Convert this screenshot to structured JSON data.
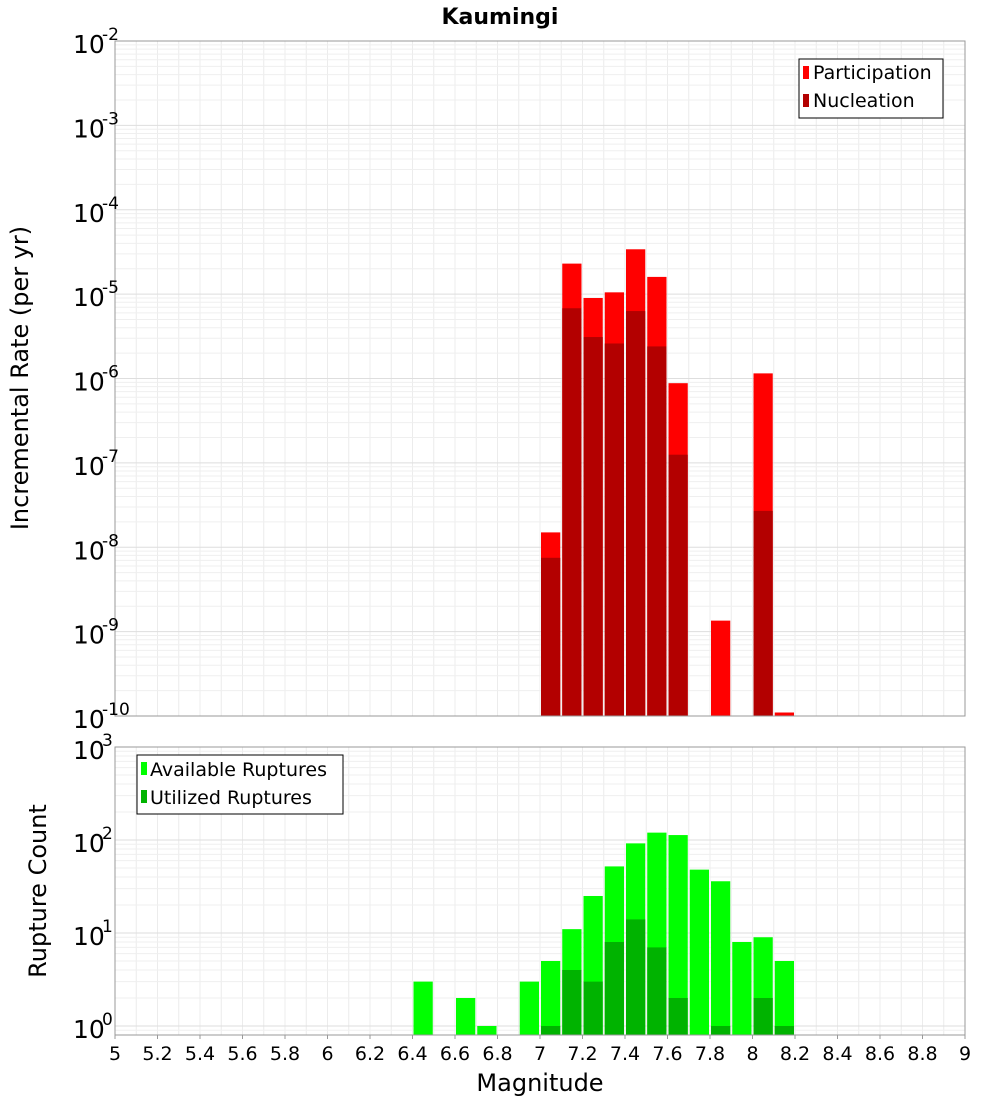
{
  "title": "Kaumingi",
  "chart_data": [
    {
      "type": "bar",
      "name": "rates",
      "ylabel": "Incremental Rate (per yr)",
      "yscale": "log",
      "ylim": [
        1e-10,
        0.01
      ],
      "xlim": [
        5,
        9
      ],
      "bin_width": 0.1,
      "grid": true,
      "legend_position": "top-right",
      "y_ticks": [
        {
          "base": "10",
          "exp": "-2",
          "value": 0.01
        },
        {
          "base": "10",
          "exp": "-3",
          "value": 0.001
        },
        {
          "base": "10",
          "exp": "-4",
          "value": 0.0001
        },
        {
          "base": "10",
          "exp": "-5",
          "value": 1e-05
        },
        {
          "base": "10",
          "exp": "-6",
          "value": 1e-06
        },
        {
          "base": "10",
          "exp": "-7",
          "value": 1e-07
        },
        {
          "base": "10",
          "exp": "-8",
          "value": 1e-08
        },
        {
          "base": "10",
          "exp": "-9",
          "value": 1e-09
        },
        {
          "base": "10",
          "exp": "-10",
          "value": 1e-10
        }
      ],
      "series": [
        {
          "name": "Participation",
          "color": "#ff0000",
          "points": [
            {
              "x": 7.05,
              "y": 1.5e-08
            },
            {
              "x": 7.15,
              "y": 2.3e-05
            },
            {
              "x": 7.25,
              "y": 9e-06
            },
            {
              "x": 7.35,
              "y": 1.05e-05
            },
            {
              "x": 7.45,
              "y": 3.4e-05
            },
            {
              "x": 7.55,
              "y": 1.6e-05
            },
            {
              "x": 7.65,
              "y": 8.8e-07
            },
            {
              "x": 7.85,
              "y": 1.35e-09
            },
            {
              "x": 8.05,
              "y": 1.15e-06
            },
            {
              "x": 8.15,
              "y": 1.1e-10
            }
          ]
        },
        {
          "name": "Nucleation",
          "color": "#b30000",
          "points": [
            {
              "x": 7.05,
              "y": 7.5e-09
            },
            {
              "x": 7.15,
              "y": 6.8e-06
            },
            {
              "x": 7.25,
              "y": 3.1e-06
            },
            {
              "x": 7.35,
              "y": 2.6e-06
            },
            {
              "x": 7.45,
              "y": 6.3e-06
            },
            {
              "x": 7.55,
              "y": 2.4e-06
            },
            {
              "x": 7.65,
              "y": 1.25e-07
            },
            {
              "x": 8.05,
              "y": 2.7e-08
            }
          ]
        }
      ]
    },
    {
      "type": "bar",
      "name": "counts",
      "xlabel": "Magnitude",
      "ylabel": "Rupture Count",
      "yscale": "log",
      "ylim": [
        0.8,
        1000
      ],
      "xlim": [
        5,
        9
      ],
      "bin_width": 0.1,
      "grid": true,
      "legend_position": "top-left",
      "x_ticks": [
        "5",
        "5.2",
        "5.4",
        "5.6",
        "5.8",
        "6",
        "6.2",
        "6.4",
        "6.6",
        "6.8",
        "7",
        "7.2",
        "7.4",
        "7.6",
        "7.8",
        "8",
        "8.2",
        "8.4",
        "8.6",
        "8.8",
        "9"
      ],
      "y_ticks": [
        {
          "base": "10",
          "exp": "3",
          "value": 1000
        },
        {
          "base": "10",
          "exp": "2",
          "value": 100
        },
        {
          "base": "10",
          "exp": "1",
          "value": 10
        },
        {
          "base": "10",
          "exp": "0",
          "value": 1
        }
      ],
      "series": [
        {
          "name": "Available Ruptures",
          "color": "#00ff00",
          "points": [
            {
              "x": 6.45,
              "y": 3
            },
            {
              "x": 6.65,
              "y": 2
            },
            {
              "x": 6.75,
              "y": 1
            },
            {
              "x": 6.95,
              "y": 3
            },
            {
              "x": 7.05,
              "y": 5
            },
            {
              "x": 7.15,
              "y": 11
            },
            {
              "x": 7.25,
              "y": 25
            },
            {
              "x": 7.35,
              "y": 52
            },
            {
              "x": 7.45,
              "y": 92
            },
            {
              "x": 7.55,
              "y": 120
            },
            {
              "x": 7.65,
              "y": 113
            },
            {
              "x": 7.75,
              "y": 48
            },
            {
              "x": 7.85,
              "y": 36
            },
            {
              "x": 7.95,
              "y": 8
            },
            {
              "x": 8.05,
              "y": 9
            },
            {
              "x": 8.15,
              "y": 5
            }
          ]
        },
        {
          "name": "Utilized Ruptures",
          "color": "#00b300",
          "points": [
            {
              "x": 7.05,
              "y": 1
            },
            {
              "x": 7.15,
              "y": 4
            },
            {
              "x": 7.25,
              "y": 3
            },
            {
              "x": 7.35,
              "y": 8
            },
            {
              "x": 7.45,
              "y": 14
            },
            {
              "x": 7.55,
              "y": 7
            },
            {
              "x": 7.65,
              "y": 2
            },
            {
              "x": 7.85,
              "y": 1
            },
            {
              "x": 8.05,
              "y": 2
            },
            {
              "x": 8.15,
              "y": 1
            }
          ]
        }
      ]
    }
  ]
}
